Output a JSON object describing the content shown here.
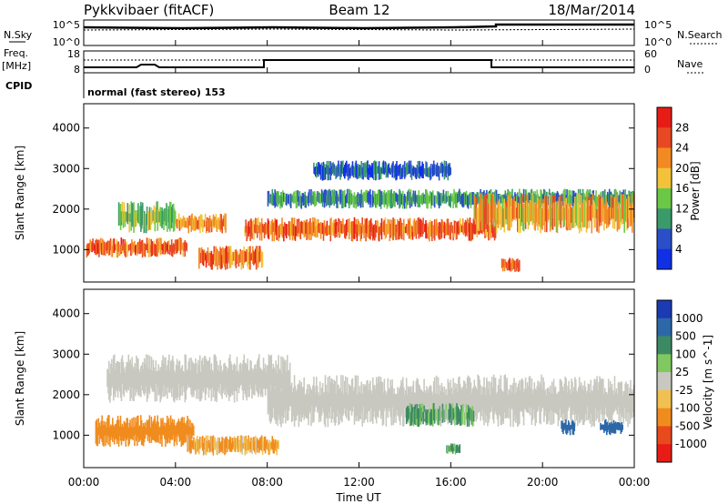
{
  "header": {
    "radar": "Pykkvibaer (fitACF)",
    "beam": "Beam 12",
    "date": "18/Mar/2014"
  },
  "panels": {
    "nsky": {
      "label": "N.Sky",
      "ticks": [
        "10^5",
        "10^0"
      ],
      "right_label": "N.Search",
      "right_ticks": [
        "10^5",
        "10^0"
      ]
    },
    "freq": {
      "label_top": "Freq.",
      "label_bottom": "[MHz]",
      "ticks": [
        "18",
        "8"
      ],
      "right_label": "Nave",
      "right_ticks": [
        "60",
        "0"
      ]
    },
    "cpid": {
      "label": "CPID",
      "text": "normal (fast stereo) 153"
    }
  },
  "chart_data": [
    {
      "type": "heatmap",
      "title": "",
      "xlabel": "Time UT",
      "ylabel": "Slant Range [km]",
      "x": [
        "00:00",
        "04:00",
        "08:00",
        "12:00",
        "16:00",
        "20:00",
        "00:00"
      ],
      "xlim": [
        0,
        24
      ],
      "ylim": [
        200,
        4600
      ],
      "yticks": [
        1000,
        2000,
        3000,
        4000
      ],
      "colorbar": {
        "label": "Power [dB]",
        "ticks": [
          4,
          8,
          12,
          16,
          20,
          24,
          28
        ],
        "range": [
          0,
          32
        ],
        "colors": [
          "#1030e6",
          "#2a4fc8",
          "#3a9a6a",
          "#6ac846",
          "#f2c23a",
          "#f28a24",
          "#e84824",
          "#e81c16"
        ]
      },
      "regions": [
        {
          "t": [
            0.1,
            4.5
          ],
          "r": [
            800,
            1300
          ],
          "dB": 24
        },
        {
          "t": [
            1.5,
            4.0
          ],
          "r": [
            1400,
            2200
          ],
          "dB": 14
        },
        {
          "t": [
            4.0,
            6.2
          ],
          "r": [
            1400,
            1900
          ],
          "dB": 22
        },
        {
          "t": [
            5.0,
            7.8
          ],
          "r": [
            500,
            1100
          ],
          "dB": 24
        },
        {
          "t": [
            7.0,
            18.0
          ],
          "r": [
            1200,
            1800
          ],
          "dB": 24
        },
        {
          "t": [
            8.0,
            24.0
          ],
          "r": [
            2000,
            2500
          ],
          "dB": 10
        },
        {
          "t": [
            10.0,
            16.0
          ],
          "r": [
            2700,
            3200
          ],
          "dB": 6
        },
        {
          "t": [
            17.0,
            24.0
          ],
          "r": [
            1400,
            2400
          ],
          "dB": 20
        },
        {
          "t": [
            18.2,
            19.0
          ],
          "r": [
            450,
            800
          ],
          "dB": 26
        }
      ]
    },
    {
      "type": "heatmap",
      "title": "",
      "xlabel": "Time UT",
      "ylabel": "Slant Range [km]",
      "x": [
        "00:00",
        "04:00",
        "08:00",
        "12:00",
        "16:00",
        "20:00",
        "00:00"
      ],
      "xlim": [
        0,
        24
      ],
      "ylim": [
        200,
        4600
      ],
      "yticks": [
        1000,
        2000,
        3000,
        4000
      ],
      "colorbar": {
        "label": "Velocity [m s^-1]",
        "ticks": [
          1000,
          500,
          100,
          25,
          -25,
          -100,
          -500,
          -1000
        ],
        "colors": [
          "#1c3ab4",
          "#2c68a8",
          "#3c8a64",
          "#80c860",
          "#c8c8c0",
          "#f0c050",
          "#f08c1e",
          "#e84a1e",
          "#e81c16"
        ]
      },
      "regions": [
        {
          "t": [
            0.5,
            4.8
          ],
          "r": [
            700,
            1500
          ],
          "v": -300
        },
        {
          "t": [
            4.5,
            8.5
          ],
          "r": [
            500,
            1000
          ],
          "v": -150
        },
        {
          "t": [
            8.0,
            24.0
          ],
          "r": [
            1200,
            2500
          ],
          "v": 0
        },
        {
          "t": [
            1.0,
            9.0
          ],
          "r": [
            1800,
            3000
          ],
          "v": 0
        },
        {
          "t": [
            14.0,
            17.0
          ],
          "r": [
            1200,
            1800
          ],
          "v": 150
        },
        {
          "t": [
            20.8,
            21.4
          ],
          "r": [
            1000,
            1400
          ],
          "v": 800
        },
        {
          "t": [
            22.5,
            23.5
          ],
          "r": [
            1000,
            1400
          ],
          "v": 700
        },
        {
          "t": [
            15.8,
            16.4
          ],
          "r": [
            500,
            800
          ],
          "v": 200
        }
      ]
    }
  ]
}
